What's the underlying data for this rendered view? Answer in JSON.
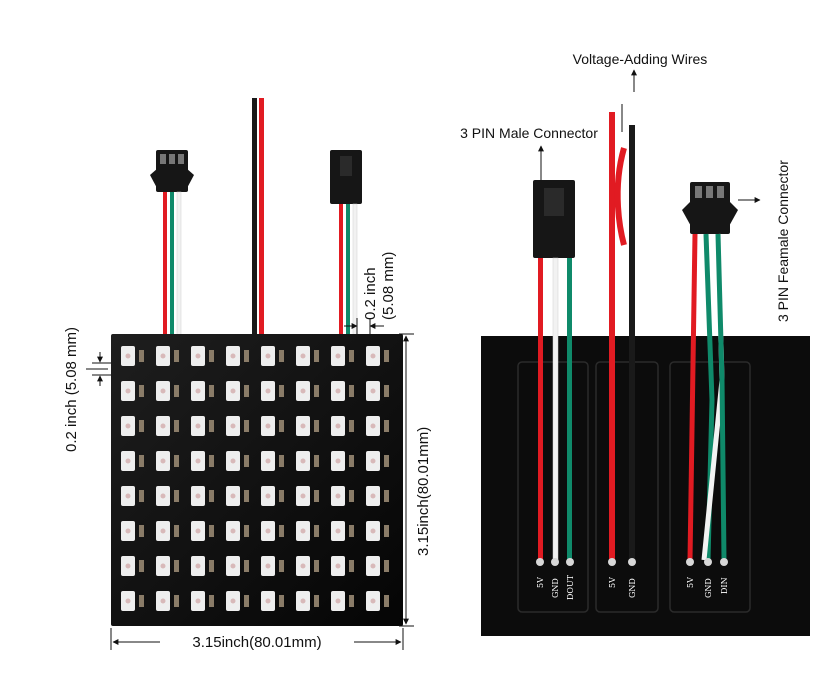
{
  "left_panel": {
    "width_label": "3.15inch(80.01mm)",
    "height_label": "3.15inch(80.01mm)",
    "edge_spacing_label": "0.2 inch (5.08 mm)",
    "connector_spacing_line1": "0.2 inch",
    "connector_spacing_line2": "(5.08 mm)",
    "led_grid": {
      "rows": 8,
      "cols": 8
    }
  },
  "right_panel": {
    "voltage_wires_label": "Voltage-Adding Wires",
    "male_connector_label": "3 PIN Male Connector",
    "female_connector_label": "3 PIN Feamale Connector",
    "pads_left": [
      "5V",
      "GND",
      "DOUT"
    ],
    "pads_middle": [
      "5V",
      "GND"
    ],
    "pads_right": [
      "5V",
      "GND",
      "DIN"
    ]
  },
  "colors": {
    "wire_red": "#e11b22",
    "wire_green": "#0f8a6a",
    "wire_white": "#f2f2f2",
    "wire_black": "#1a1a1a",
    "board": "#111111",
    "led_body": "#eeeeee"
  }
}
